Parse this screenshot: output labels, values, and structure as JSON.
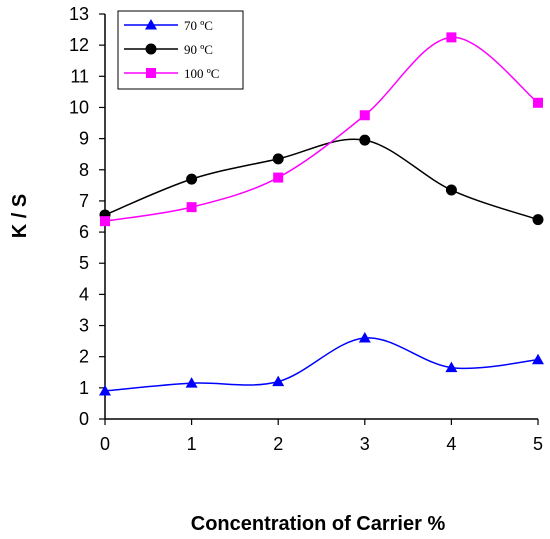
{
  "chart_data": {
    "type": "line",
    "title": "",
    "xlabel": "Concentration of Carrier %",
    "ylabel": "K / S",
    "x": [
      0,
      1,
      2,
      3,
      4,
      5
    ],
    "xlim": [
      0,
      5
    ],
    "ylim": [
      0,
      13
    ],
    "xticks": [
      "0",
      "1",
      "2",
      "3",
      "4",
      "5"
    ],
    "yticks": [
      "0",
      "1",
      "2",
      "3",
      "4",
      "5",
      "6",
      "7",
      "8",
      "9",
      "10",
      "11",
      "12",
      "13"
    ],
    "grid": false,
    "legend_position": "top-left",
    "series": [
      {
        "name": "70 ºC",
        "values": [
          0.9,
          1.15,
          1.2,
          2.6,
          1.65,
          1.9
        ],
        "color": "#0000ff",
        "marker": "triangle"
      },
      {
        "name": "90 ºC",
        "values": [
          6.55,
          7.7,
          8.35,
          8.95,
          7.35,
          6.4
        ],
        "color": "#000000",
        "marker": "circle"
      },
      {
        "name": "100 ºC",
        "values": [
          6.35,
          6.8,
          7.75,
          9.75,
          12.25,
          10.15
        ],
        "color": "#ff00ff",
        "marker": "square"
      }
    ]
  }
}
